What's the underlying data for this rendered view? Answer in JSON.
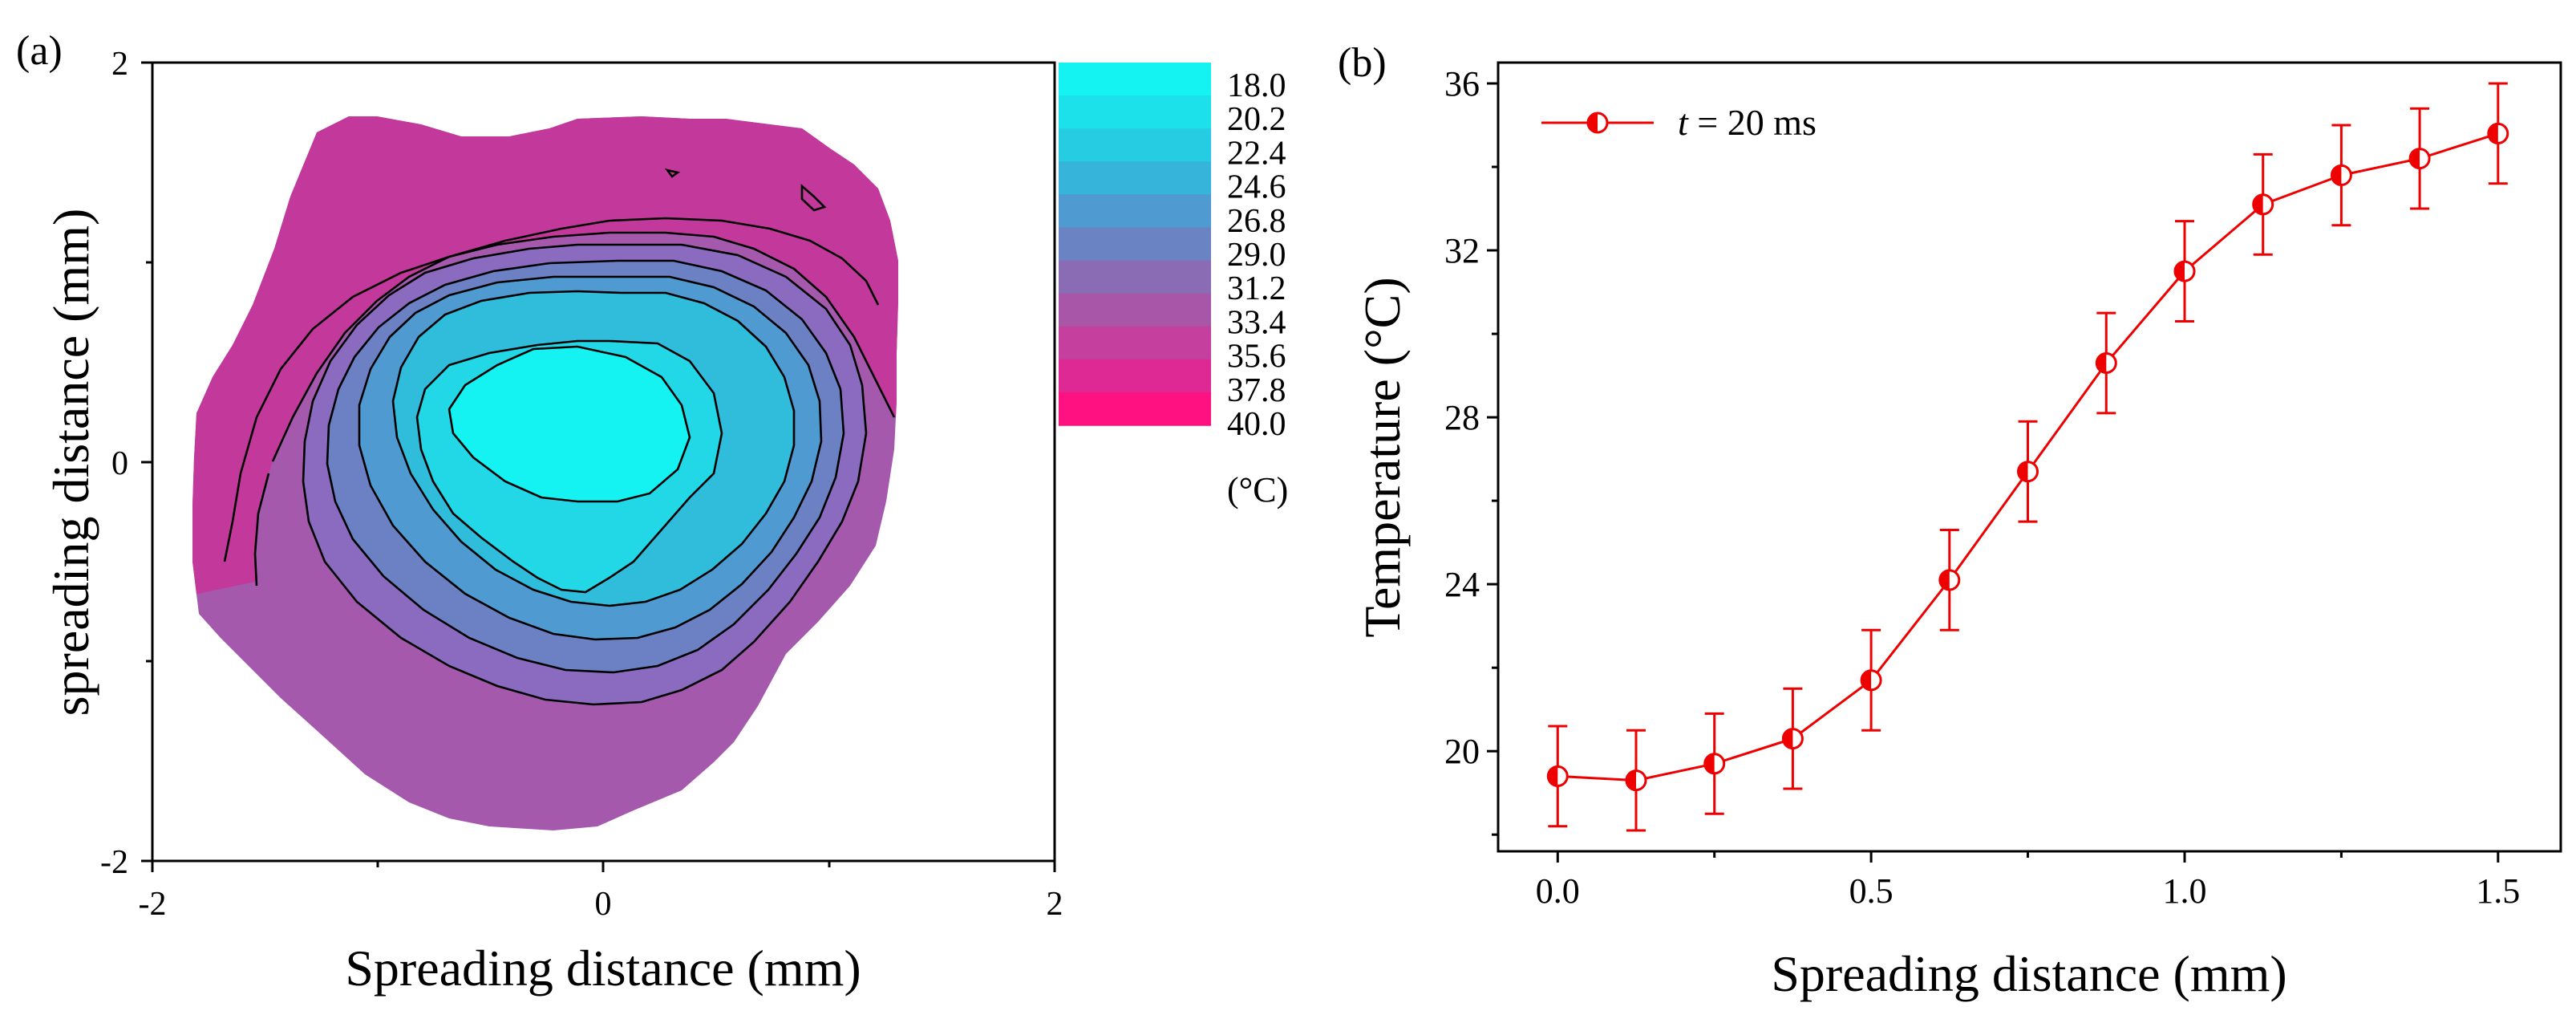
{
  "chart_data": [
    {
      "panel_label": "(a)",
      "type": "contour",
      "xlabel": "Spreading distance (mm)",
      "ylabel": "spreading distance (mm)",
      "xlim": [
        -2,
        2
      ],
      "ylim": [
        -2,
        2
      ],
      "xticks": [
        "-2",
        "0",
        "2"
      ],
      "yticks": [
        "2",
        "0",
        "-2"
      ],
      "colorbar": {
        "levels": [
          "18.0",
          "20.2",
          "22.4",
          "24.6",
          "26.8",
          "29.0",
          "31.2",
          "33.4",
          "35.6",
          "37.8",
          "40.0"
        ],
        "colors": [
          "#14f2f2",
          "#1ce0ea",
          "#26cde2",
          "#36b4da",
          "#4f9ad0",
          "#6a83c2",
          "#8a6cb4",
          "#a857a8",
          "#c43f9e",
          "#de2893",
          "#ff1181"
        ],
        "unit": "(°C)"
      }
    },
    {
      "panel_label": "(b)",
      "type": "line",
      "xlabel": "Spreading distance (mm)",
      "ylabel": "Temperature (°C)",
      "xlim": [
        -0.095,
        1.6
      ],
      "ylim": [
        17.6,
        36.5
      ],
      "xticks": [
        "0.0",
        "0.5",
        "1.0",
        "1.5"
      ],
      "yticks": [
        "20",
        "24",
        "28",
        "32",
        "36"
      ],
      "legend_var": "t",
      "legend_rest": " = 20 ms",
      "color": "#ee0000",
      "series": [
        {
          "name": "t = 20 ms",
          "x": [
            0.0,
            0.125,
            0.25,
            0.375,
            0.5,
            0.625,
            0.75,
            0.875,
            1.0,
            1.125,
            1.25,
            1.375,
            1.5
          ],
          "y": [
            19.4,
            19.3,
            19.7,
            20.3,
            21.7,
            24.1,
            26.7,
            29.3,
            31.5,
            33.1,
            33.8,
            34.2,
            34.8
          ],
          "err": [
            1.2,
            1.2,
            1.2,
            1.2,
            1.2,
            1.2,
            1.2,
            1.2,
            1.2,
            1.2,
            1.2,
            1.2,
            1.2
          ]
        }
      ]
    }
  ]
}
